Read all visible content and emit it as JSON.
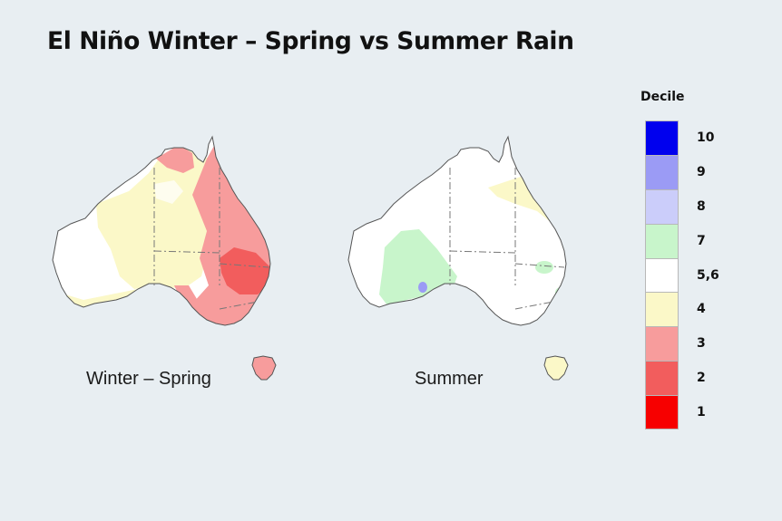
{
  "title": "El Niño Winter – Spring vs Summer Rain",
  "maps": [
    {
      "label": "Winter – Spring"
    },
    {
      "label": "Summer"
    }
  ],
  "legend": {
    "title": "Decile",
    "items": [
      {
        "label": "10",
        "color": "#0000ee"
      },
      {
        "label": "9",
        "color": "#9b9bf5"
      },
      {
        "label": "8",
        "color": "#cbcdfa"
      },
      {
        "label": "7",
        "color": "#c8f5cb"
      },
      {
        "label": "5,6",
        "color": "#ffffff"
      },
      {
        "label": "4",
        "color": "#fbf8c8"
      },
      {
        "label": "3",
        "color": "#f79c9c"
      },
      {
        "label": "2",
        "color": "#f25d5d"
      },
      {
        "label": "1",
        "color": "#f70000"
      }
    ]
  }
}
